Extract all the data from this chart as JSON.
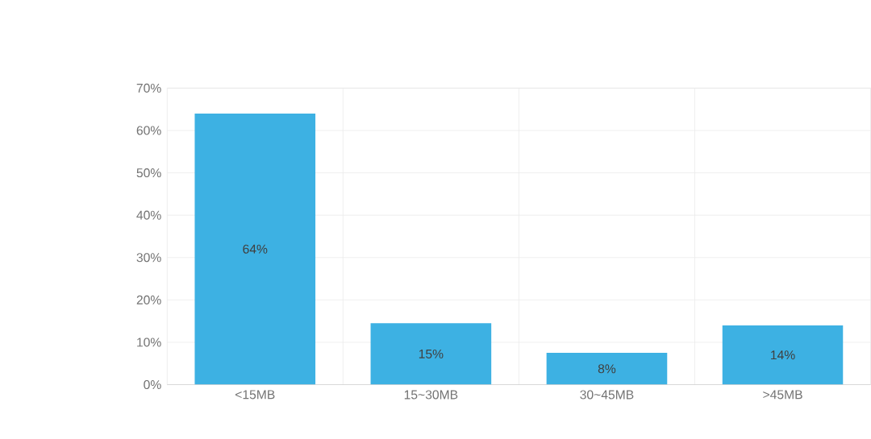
{
  "chart_data": {
    "type": "bar",
    "categories": [
      "<15MB",
      "15~30MB",
      "30~45MB",
      ">45MB"
    ],
    "values": [
      64,
      14.5,
      7.5,
      14
    ],
    "value_labels": [
      "64%",
      "15%",
      "8%",
      "14%"
    ],
    "color": "#3db1e3",
    "ylim": [
      0,
      70
    ],
    "yticks": [
      {
        "value": 0,
        "label": "0%"
      },
      {
        "value": 10,
        "label": "10%"
      },
      {
        "value": 20,
        "label": "20%"
      },
      {
        "value": 30,
        "label": "30%"
      },
      {
        "value": 40,
        "label": "40%"
      },
      {
        "value": 50,
        "label": "50%"
      },
      {
        "value": 60,
        "label": "60%"
      },
      {
        "value": 70,
        "label": "70%"
      }
    ],
    "grid": true
  }
}
